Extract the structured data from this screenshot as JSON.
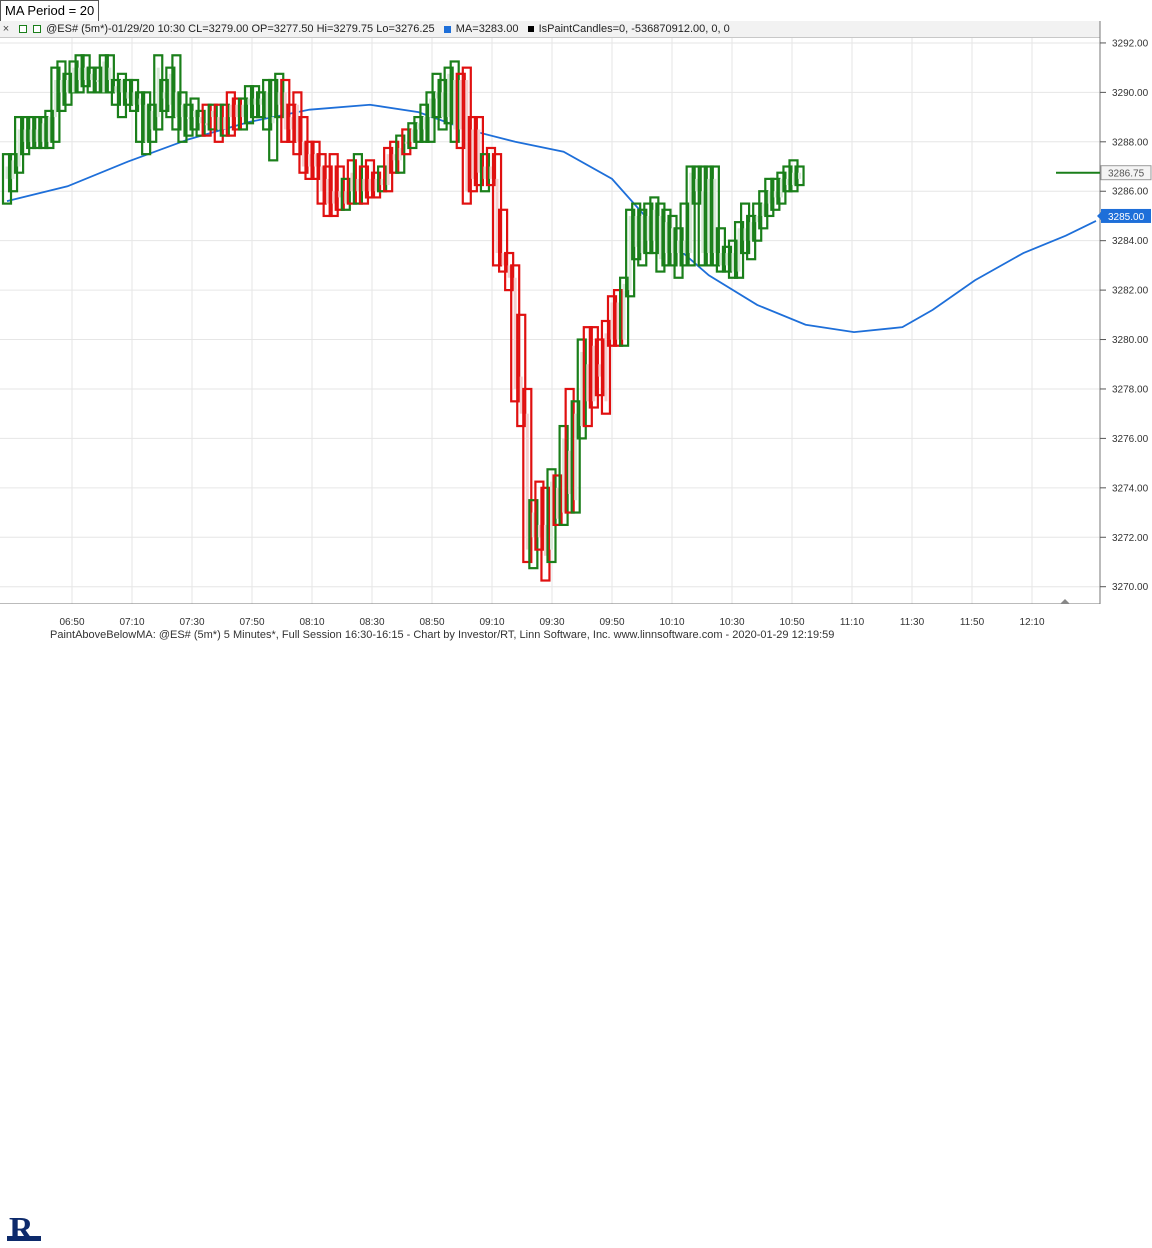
{
  "param_box": {
    "label": "MA Period = 20"
  },
  "info_bar": {
    "close_icon": "close-icon",
    "symbol_info": "@ES# (5m*)-01/29/20 10:30 CL=3279.00 OP=3277.50 Hi=3279.75 Lo=3276.25",
    "ma_info": "MA=3283.00",
    "paint_info": "IsPaintCandles=0, -536870912.00, 0, 0"
  },
  "footer": {
    "logo_letter": "R",
    "text": "PaintAboveBelowMA: @ES# (5m*) 5 Minutes*, Full Session 16:30-16:15 - Chart by Investor/RT, Linn Software, Inc. www.linnsoftware.com - 2020-01-29 12:19:59"
  },
  "colors": {
    "up": "#1a7f1a",
    "down": "#e01010",
    "ma": "#1e6fd9",
    "grid": "#e6e6e6",
    "body_up_fill": "#d8ead8",
    "body_down_fill": "#f3d0d0"
  },
  "chart_data": {
    "type": "candlestick",
    "y_axis_labels": [
      "3292.00",
      "3290.00",
      "3288.00",
      "3286.00",
      "3284.00",
      "3282.00",
      "3280.00",
      "3278.00",
      "3276.00",
      "3274.00",
      "3272.00",
      "3270.00"
    ],
    "y_ticks": [
      3292,
      3290,
      3288,
      3286,
      3284,
      3282,
      3280,
      3278,
      3276,
      3274,
      3272,
      3270
    ],
    "ylim": [
      3269.3,
      3292.2
    ],
    "x_tick_labels": [
      "06:50",
      "07:10",
      "07:30",
      "07:50",
      "08:10",
      "08:30",
      "08:50",
      "09:10",
      "09:30",
      "09:50",
      "10:10",
      "10:30",
      "10:50",
      "11:10",
      "11:30",
      "11:50",
      "12:10"
    ],
    "last_price_label": "3286.75",
    "ma_price_label": "3285.00",
    "last_price": 3286.75,
    "ma_last": 3285.0,
    "candles": [
      {
        "o": 3286.5,
        "h": 3287.5,
        "l": 3285.5,
        "c": 3287.0,
        "col": "up"
      },
      {
        "o": 3286.5,
        "h": 3287.5,
        "l": 3286.0,
        "c": 3287.25,
        "col": "up"
      },
      {
        "o": 3287.0,
        "h": 3289.0,
        "l": 3286.75,
        "c": 3288.5,
        "col": "up"
      },
      {
        "o": 3288.0,
        "h": 3289.0,
        "l": 3287.5,
        "c": 3288.5,
        "col": "up"
      },
      {
        "o": 3288.0,
        "h": 3289.0,
        "l": 3287.75,
        "c": 3288.5,
        "col": "up"
      },
      {
        "o": 3288.5,
        "h": 3289.0,
        "l": 3287.75,
        "c": 3288.0,
        "col": "up"
      },
      {
        "o": 3288.0,
        "h": 3289.0,
        "l": 3287.75,
        "c": 3288.75,
        "col": "up"
      },
      {
        "o": 3288.0,
        "h": 3289.25,
        "l": 3287.75,
        "c": 3289.0,
        "col": "up"
      },
      {
        "o": 3289.0,
        "h": 3291.0,
        "l": 3288.0,
        "c": 3290.5,
        "col": "up"
      },
      {
        "o": 3290.5,
        "h": 3291.25,
        "l": 3289.25,
        "c": 3290.0,
        "col": "up"
      },
      {
        "o": 3290.0,
        "h": 3290.75,
        "l": 3289.5,
        "c": 3290.5,
        "col": "up"
      },
      {
        "o": 3290.0,
        "h": 3291.25,
        "l": 3290.0,
        "c": 3291.0,
        "col": "up"
      },
      {
        "o": 3290.5,
        "h": 3291.5,
        "l": 3290.0,
        "c": 3291.0,
        "col": "up"
      },
      {
        "o": 3291.0,
        "h": 3291.5,
        "l": 3290.25,
        "c": 3290.5,
        "col": "up"
      },
      {
        "o": 3290.5,
        "h": 3291.0,
        "l": 3290.0,
        "c": 3290.75,
        "col": "up"
      },
      {
        "o": 3290.5,
        "h": 3291.0,
        "l": 3290.0,
        "c": 3290.5,
        "col": "up"
      },
      {
        "o": 3290.0,
        "h": 3291.5,
        "l": 3290.0,
        "c": 3291.25,
        "col": "up"
      },
      {
        "o": 3290.5,
        "h": 3291.5,
        "l": 3290.0,
        "c": 3291.0,
        "col": "up"
      },
      {
        "o": 3290.0,
        "h": 3290.5,
        "l": 3289.5,
        "c": 3290.25,
        "col": "up"
      },
      {
        "o": 3290.0,
        "h": 3290.75,
        "l": 3289.0,
        "c": 3290.5,
        "col": "up"
      },
      {
        "o": 3290.0,
        "h": 3290.5,
        "l": 3289.5,
        "c": 3289.75,
        "col": "up"
      },
      {
        "o": 3289.5,
        "h": 3290.5,
        "l": 3289.25,
        "c": 3290.0,
        "col": "up"
      },
      {
        "o": 3289.5,
        "h": 3290.0,
        "l": 3288.0,
        "c": 3289.75,
        "col": "up"
      },
      {
        "o": 3289.5,
        "h": 3290.0,
        "l": 3287.5,
        "c": 3288.0,
        "col": "up"
      },
      {
        "o": 3288.5,
        "h": 3289.5,
        "l": 3288.0,
        "c": 3289.25,
        "col": "up"
      },
      {
        "o": 3289.0,
        "h": 3291.5,
        "l": 3288.5,
        "c": 3291.0,
        "col": "up"
      },
      {
        "o": 3290.0,
        "h": 3290.5,
        "l": 3289.25,
        "c": 3289.75,
        "col": "up"
      },
      {
        "o": 3289.5,
        "h": 3291.0,
        "l": 3289.0,
        "c": 3290.75,
        "col": "up"
      },
      {
        "o": 3290.0,
        "h": 3291.5,
        "l": 3288.5,
        "c": 3289.0,
        "col": "up"
      },
      {
        "o": 3289.0,
        "h": 3290.0,
        "l": 3288.0,
        "c": 3289.5,
        "col": "up"
      },
      {
        "o": 3289.0,
        "h": 3289.5,
        "l": 3288.25,
        "c": 3289.0,
        "col": "up"
      },
      {
        "o": 3289.0,
        "h": 3289.75,
        "l": 3288.5,
        "c": 3289.25,
        "col": "up"
      },
      {
        "o": 3289.0,
        "h": 3289.25,
        "l": 3288.25,
        "c": 3288.75,
        "col": "up"
      },
      {
        "o": 3288.75,
        "h": 3289.5,
        "l": 3288.25,
        "c": 3288.75,
        "col": "down"
      },
      {
        "o": 3289.0,
        "h": 3289.5,
        "l": 3288.5,
        "c": 3289.25,
        "col": "up"
      },
      {
        "o": 3289.0,
        "h": 3289.5,
        "l": 3288.0,
        "c": 3288.5,
        "col": "down"
      },
      {
        "o": 3288.5,
        "h": 3289.5,
        "l": 3288.25,
        "c": 3289.0,
        "col": "up"
      },
      {
        "o": 3289.0,
        "h": 3290.0,
        "l": 3288.25,
        "c": 3289.5,
        "col": "down"
      },
      {
        "o": 3289.5,
        "h": 3289.75,
        "l": 3288.5,
        "c": 3289.0,
        "col": "down"
      },
      {
        "o": 3289.0,
        "h": 3289.75,
        "l": 3288.5,
        "c": 3289.5,
        "col": "up"
      },
      {
        "o": 3289.5,
        "h": 3290.25,
        "l": 3288.75,
        "c": 3289.75,
        "col": "up"
      },
      {
        "o": 3289.75,
        "h": 3290.25,
        "l": 3289.0,
        "c": 3289.5,
        "col": "up"
      },
      {
        "o": 3289.5,
        "h": 3290.0,
        "l": 3289.0,
        "c": 3289.75,
        "col": "up"
      },
      {
        "o": 3290.0,
        "h": 3290.5,
        "l": 3288.5,
        "c": 3289.0,
        "col": "up"
      },
      {
        "o": 3289.0,
        "h": 3290.5,
        "l": 3287.25,
        "c": 3288.75,
        "col": "up"
      },
      {
        "o": 3289.5,
        "h": 3290.75,
        "l": 3289.0,
        "c": 3290.0,
        "col": "up"
      },
      {
        "o": 3290.0,
        "h": 3290.5,
        "l": 3288.0,
        "c": 3288.5,
        "col": "down"
      },
      {
        "o": 3288.5,
        "h": 3289.5,
        "l": 3288.0,
        "c": 3289.0,
        "col": "down"
      },
      {
        "o": 3289.5,
        "h": 3290.0,
        "l": 3287.5,
        "c": 3288.0,
        "col": "down"
      },
      {
        "o": 3288.0,
        "h": 3289.0,
        "l": 3286.75,
        "c": 3287.0,
        "col": "down"
      },
      {
        "o": 3287.5,
        "h": 3288.0,
        "l": 3286.5,
        "c": 3287.0,
        "col": "down"
      },
      {
        "o": 3287.5,
        "h": 3288.0,
        "l": 3286.5,
        "c": 3287.0,
        "col": "down"
      },
      {
        "o": 3287.0,
        "h": 3287.5,
        "l": 3285.5,
        "c": 3286.0,
        "col": "down"
      },
      {
        "o": 3286.5,
        "h": 3287.0,
        "l": 3285.0,
        "c": 3285.5,
        "col": "down"
      },
      {
        "o": 3286.0,
        "h": 3287.5,
        "l": 3285.0,
        "c": 3285.5,
        "col": "down"
      },
      {
        "o": 3286.0,
        "h": 3287.0,
        "l": 3285.25,
        "c": 3285.75,
        "col": "down"
      },
      {
        "o": 3285.5,
        "h": 3286.5,
        "l": 3285.25,
        "c": 3286.0,
        "col": "up"
      },
      {
        "o": 3286.0,
        "h": 3287.25,
        "l": 3285.5,
        "c": 3286.75,
        "col": "down"
      },
      {
        "o": 3286.5,
        "h": 3287.5,
        "l": 3285.5,
        "c": 3286.0,
        "col": "up"
      },
      {
        "o": 3286.0,
        "h": 3287.0,
        "l": 3285.5,
        "c": 3286.5,
        "col": "down"
      },
      {
        "o": 3286.5,
        "h": 3287.25,
        "l": 3285.75,
        "c": 3286.0,
        "col": "down"
      },
      {
        "o": 3286.0,
        "h": 3286.75,
        "l": 3285.75,
        "c": 3286.5,
        "col": "down"
      },
      {
        "o": 3286.5,
        "h": 3287.0,
        "l": 3286.0,
        "c": 3286.25,
        "col": "up"
      },
      {
        "o": 3286.25,
        "h": 3287.75,
        "l": 3286.0,
        "c": 3287.5,
        "col": "down"
      },
      {
        "o": 3287.5,
        "h": 3288.0,
        "l": 3286.75,
        "c": 3287.25,
        "col": "down"
      },
      {
        "o": 3287.25,
        "h": 3288.25,
        "l": 3286.75,
        "c": 3287.75,
        "col": "up"
      },
      {
        "o": 3288.0,
        "h": 3288.5,
        "l": 3287.5,
        "c": 3288.0,
        "col": "down"
      },
      {
        "o": 3288.0,
        "h": 3288.75,
        "l": 3287.75,
        "c": 3288.5,
        "col": "up"
      },
      {
        "o": 3288.5,
        "h": 3289.0,
        "l": 3288.0,
        "c": 3288.75,
        "col": "up"
      },
      {
        "o": 3288.5,
        "h": 3289.5,
        "l": 3288.0,
        "c": 3289.0,
        "col": "up"
      },
      {
        "o": 3289.0,
        "h": 3290.0,
        "l": 3288.0,
        "c": 3289.75,
        "col": "up"
      },
      {
        "o": 3289.75,
        "h": 3290.75,
        "l": 3289.0,
        "c": 3290.0,
        "col": "up"
      },
      {
        "o": 3290.0,
        "h": 3290.5,
        "l": 3288.5,
        "c": 3289.0,
        "col": "up"
      },
      {
        "o": 3289.0,
        "h": 3291.0,
        "l": 3288.75,
        "c": 3290.75,
        "col": "up"
      },
      {
        "o": 3290.5,
        "h": 3291.25,
        "l": 3288.0,
        "c": 3288.5,
        "col": "up"
      },
      {
        "o": 3288.5,
        "h": 3290.75,
        "l": 3287.75,
        "c": 3290.5,
        "col": "down"
      },
      {
        "o": 3290.5,
        "h": 3291.0,
        "l": 3285.5,
        "c": 3286.0,
        "col": "down"
      },
      {
        "o": 3286.5,
        "h": 3289.0,
        "l": 3286.0,
        "c": 3288.5,
        "col": "down"
      },
      {
        "o": 3288.5,
        "h": 3289.0,
        "l": 3286.25,
        "c": 3286.75,
        "col": "down"
      },
      {
        "o": 3286.5,
        "h": 3287.5,
        "l": 3286.0,
        "c": 3287.0,
        "col": "up"
      },
      {
        "o": 3287.0,
        "h": 3287.75,
        "l": 3286.25,
        "c": 3286.5,
        "col": "down"
      },
      {
        "o": 3286.5,
        "h": 3287.5,
        "l": 3283.0,
        "c": 3283.5,
        "col": "down"
      },
      {
        "o": 3283.5,
        "h": 3285.25,
        "l": 3282.75,
        "c": 3283.0,
        "col": "down"
      },
      {
        "o": 3283.0,
        "h": 3283.5,
        "l": 3282.0,
        "c": 3282.5,
        "col": "down"
      },
      {
        "o": 3282.5,
        "h": 3283.0,
        "l": 3277.5,
        "c": 3278.0,
        "col": "down"
      },
      {
        "o": 3278.5,
        "h": 3281.0,
        "l": 3276.5,
        "c": 3277.0,
        "col": "down"
      },
      {
        "o": 3277.0,
        "h": 3278.0,
        "l": 3271.0,
        "c": 3271.5,
        "col": "down"
      },
      {
        "o": 3272.0,
        "h": 3273.5,
        "l": 3270.75,
        "c": 3273.0,
        "col": "up"
      },
      {
        "o": 3272.5,
        "h": 3274.25,
        "l": 3271.5,
        "c": 3272.0,
        "col": "down"
      },
      {
        "o": 3272.5,
        "h": 3274.0,
        "l": 3270.25,
        "c": 3271.25,
        "col": "down"
      },
      {
        "o": 3271.5,
        "h": 3274.75,
        "l": 3271.0,
        "c": 3274.25,
        "col": "up"
      },
      {
        "o": 3274.0,
        "h": 3274.5,
        "l": 3272.5,
        "c": 3272.75,
        "col": "down"
      },
      {
        "o": 3273.0,
        "h": 3276.5,
        "l": 3272.5,
        "c": 3276.0,
        "col": "up"
      },
      {
        "o": 3275.5,
        "h": 3278.0,
        "l": 3273.0,
        "c": 3273.75,
        "col": "down"
      },
      {
        "o": 3273.5,
        "h": 3277.5,
        "l": 3273.0,
        "c": 3277.0,
        "col": "up"
      },
      {
        "o": 3276.5,
        "h": 3280.0,
        "l": 3276.0,
        "c": 3279.5,
        "col": "up"
      },
      {
        "o": 3279.0,
        "h": 3280.5,
        "l": 3276.5,
        "c": 3277.5,
        "col": "down"
      },
      {
        "o": 3277.5,
        "h": 3280.5,
        "l": 3277.25,
        "c": 3279.75,
        "col": "down"
      },
      {
        "o": 3279.0,
        "h": 3280.0,
        "l": 3277.75,
        "c": 3278.5,
        "col": "down"
      },
      {
        "o": 3277.5,
        "h": 3280.75,
        "l": 3277.0,
        "c": 3280.25,
        "col": "down"
      },
      {
        "o": 3280.0,
        "h": 3281.75,
        "l": 3279.75,
        "c": 3281.5,
        "col": "down"
      },
      {
        "o": 3281.5,
        "h": 3282.0,
        "l": 3279.75,
        "c": 3280.0,
        "col": "down"
      },
      {
        "o": 3280.0,
        "h": 3282.5,
        "l": 3279.75,
        "c": 3282.25,
        "col": "up"
      },
      {
        "o": 3282.0,
        "h": 3285.25,
        "l": 3281.75,
        "c": 3285.0,
        "col": "up"
      },
      {
        "o": 3285.0,
        "h": 3285.5,
        "l": 3283.25,
        "c": 3283.75,
        "col": "up"
      },
      {
        "o": 3283.5,
        "h": 3285.25,
        "l": 3283.0,
        "c": 3285.0,
        "col": "up"
      },
      {
        "o": 3285.0,
        "h": 3285.5,
        "l": 3283.5,
        "c": 3284.0,
        "col": "up"
      },
      {
        "o": 3284.0,
        "h": 3285.75,
        "l": 3283.5,
        "c": 3285.25,
        "col": "up"
      },
      {
        "o": 3285.0,
        "h": 3285.5,
        "l": 3282.75,
        "c": 3283.25,
        "col": "up"
      },
      {
        "o": 3283.5,
        "h": 3285.25,
        "l": 3283.0,
        "c": 3284.75,
        "col": "up"
      },
      {
        "o": 3284.5,
        "h": 3285.0,
        "l": 3283.0,
        "c": 3283.5,
        "col": "up"
      },
      {
        "o": 3283.5,
        "h": 3284.5,
        "l": 3282.5,
        "c": 3284.0,
        "col": "up"
      },
      {
        "o": 3284.0,
        "h": 3285.5,
        "l": 3283.0,
        "c": 3283.5,
        "col": "up"
      },
      {
        "o": 3283.5,
        "h": 3287.0,
        "l": 3283.0,
        "c": 3286.75,
        "col": "up"
      },
      {
        "o": 3286.5,
        "h": 3287.0,
        "l": 3285.5,
        "c": 3286.0,
        "col": "up"
      },
      {
        "o": 3286.0,
        "h": 3287.0,
        "l": 3283.0,
        "c": 3283.5,
        "col": "up"
      },
      {
        "o": 3283.5,
        "h": 3287.0,
        "l": 3283.0,
        "c": 3286.5,
        "col": "up"
      },
      {
        "o": 3286.5,
        "h": 3287.0,
        "l": 3283.0,
        "c": 3283.5,
        "col": "up"
      },
      {
        "o": 3283.5,
        "h": 3284.5,
        "l": 3282.75,
        "c": 3283.0,
        "col": "up"
      },
      {
        "o": 3283.0,
        "h": 3283.75,
        "l": 3282.75,
        "c": 3283.5,
        "col": "up"
      },
      {
        "o": 3283.5,
        "h": 3284.0,
        "l": 3282.5,
        "c": 3282.75,
        "col": "up"
      },
      {
        "o": 3282.75,
        "h": 3284.75,
        "l": 3282.5,
        "c": 3284.5,
        "col": "up"
      },
      {
        "o": 3284.5,
        "h": 3285.5,
        "l": 3283.5,
        "c": 3284.0,
        "col": "up"
      },
      {
        "o": 3284.0,
        "h": 3285.0,
        "l": 3283.25,
        "c": 3284.75,
        "col": "up"
      },
      {
        "o": 3284.75,
        "h": 3285.5,
        "l": 3284.0,
        "c": 3285.0,
        "col": "up"
      },
      {
        "o": 3285.0,
        "h": 3286.0,
        "l": 3284.5,
        "c": 3285.5,
        "col": "up"
      },
      {
        "o": 3285.5,
        "h": 3286.5,
        "l": 3285.0,
        "c": 3286.0,
        "col": "up"
      },
      {
        "o": 3286.0,
        "h": 3286.5,
        "l": 3285.25,
        "c": 3285.75,
        "col": "up"
      },
      {
        "o": 3285.75,
        "h": 3286.75,
        "l": 3285.5,
        "c": 3286.5,
        "col": "up"
      },
      {
        "o": 3286.5,
        "h": 3287.0,
        "l": 3286.0,
        "c": 3286.25,
        "col": "up"
      },
      {
        "o": 3286.25,
        "h": 3287.25,
        "l": 3286.0,
        "c": 3286.75,
        "col": "up"
      },
      {
        "o": 3286.5,
        "h": 3287.0,
        "l": 3286.25,
        "c": 3286.75,
        "col": "up"
      }
    ],
    "ma": [
      [
        0,
        3285.6
      ],
      [
        10,
        3286.2
      ],
      [
        20,
        3287.2
      ],
      [
        30,
        3288.1
      ],
      [
        40,
        3288.8
      ],
      [
        50,
        3289.3
      ],
      [
        60,
        3289.5
      ],
      [
        68,
        3289.2
      ],
      [
        76,
        3288.5
      ],
      [
        84,
        3288.0
      ],
      [
        92,
        3287.6
      ],
      [
        100,
        3286.5
      ],
      [
        108,
        3284.3
      ],
      [
        116,
        3282.6
      ],
      [
        124,
        3281.4
      ],
      [
        132,
        3280.6
      ],
      [
        140,
        3280.3
      ],
      [
        148,
        3280.5
      ],
      [
        153,
        3281.2
      ],
      [
        160,
        3282.4
      ],
      [
        168,
        3283.5
      ],
      [
        175,
        3284.2
      ],
      [
        180,
        3284.8
      ]
    ]
  }
}
